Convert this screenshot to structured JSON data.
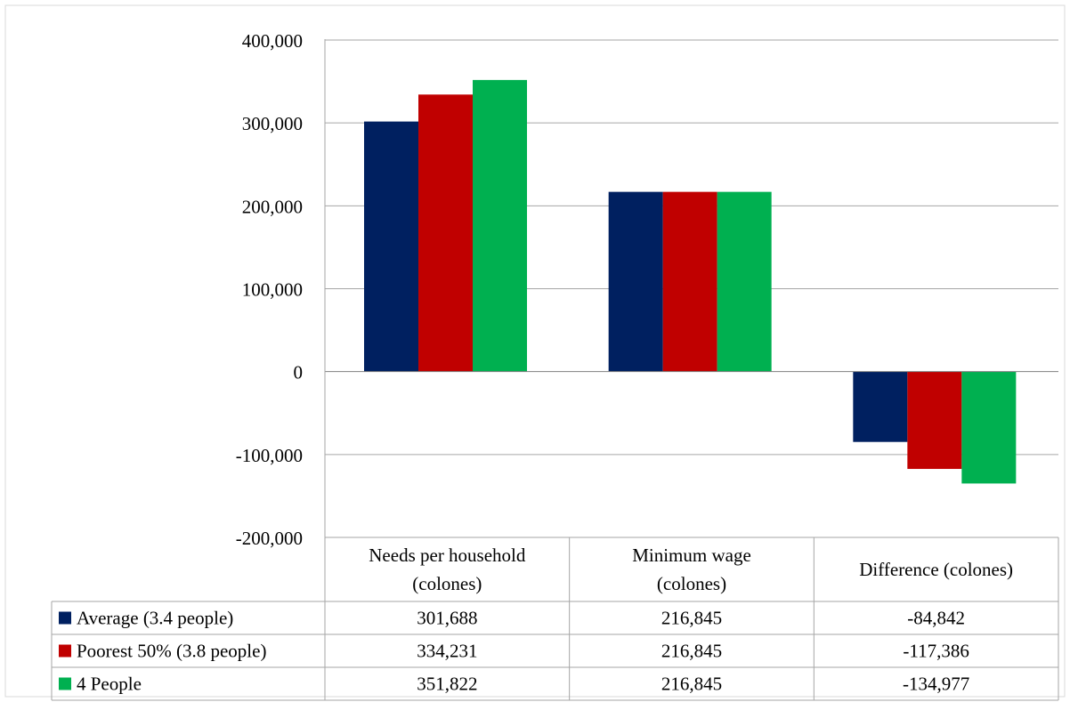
{
  "chart_data": {
    "type": "bar",
    "categories": [
      "Needs per household (colones)",
      "Minimum wage (colones)",
      "Difference (colones)"
    ],
    "category_label_lines": [
      [
        "Needs per household",
        "(colones)"
      ],
      [
        "Minimum wage",
        "(colones)"
      ],
      [
        "Difference (colones)"
      ]
    ],
    "series": [
      {
        "name": "Average (3.4 people)",
        "values": [
          301688,
          216845,
          -84842
        ],
        "display": [
          "301,688",
          "216,845",
          "-84,842"
        ],
        "color": "#002060"
      },
      {
        "name": "Poorest 50% (3.8 people)",
        "values": [
          334231,
          216845,
          -117386
        ],
        "display": [
          "334,231",
          "216,845",
          "-117,386"
        ],
        "color": "#C00000"
      },
      {
        "name": "4 People",
        "values": [
          351822,
          216845,
          -134977
        ],
        "display": [
          "351,822",
          "216,845",
          "-134,977"
        ],
        "color": "#00B050"
      }
    ],
    "y_ticks": [
      400000,
      300000,
      200000,
      100000,
      0,
      -100000,
      -200000
    ],
    "y_tick_labels": [
      "400,000",
      "300,000",
      "200,000",
      "100,000",
      "0",
      "-100,000",
      "-200,000"
    ],
    "ylim": [
      -200000,
      400000
    ],
    "grid": true,
    "legend": "data-table",
    "title": "",
    "xlabel": "",
    "ylabel": ""
  }
}
